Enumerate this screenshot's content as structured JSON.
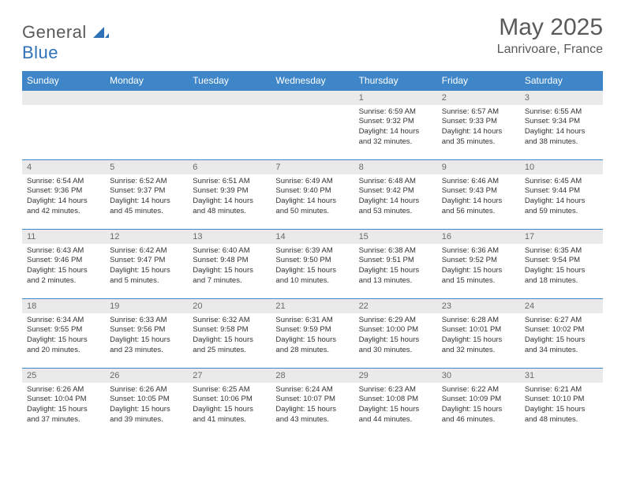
{
  "brand": {
    "part1": "General",
    "part2": "Blue"
  },
  "title": "May 2025",
  "location": "Lanrivoare, France",
  "header_bg": "#3f86c9",
  "daynum_bg": "#eaeaea",
  "text_color": "#333333",
  "muted_color": "#6a6a6a",
  "weekdays": [
    "Sunday",
    "Monday",
    "Tuesday",
    "Wednesday",
    "Thursday",
    "Friday",
    "Saturday"
  ],
  "weeks": [
    [
      null,
      null,
      null,
      null,
      {
        "n": "1",
        "sr": "Sunrise: 6:59 AM",
        "ss": "Sunset: 9:32 PM",
        "dl": "Daylight: 14 hours and 32 minutes."
      },
      {
        "n": "2",
        "sr": "Sunrise: 6:57 AM",
        "ss": "Sunset: 9:33 PM",
        "dl": "Daylight: 14 hours and 35 minutes."
      },
      {
        "n": "3",
        "sr": "Sunrise: 6:55 AM",
        "ss": "Sunset: 9:34 PM",
        "dl": "Daylight: 14 hours and 38 minutes."
      }
    ],
    [
      {
        "n": "4",
        "sr": "Sunrise: 6:54 AM",
        "ss": "Sunset: 9:36 PM",
        "dl": "Daylight: 14 hours and 42 minutes."
      },
      {
        "n": "5",
        "sr": "Sunrise: 6:52 AM",
        "ss": "Sunset: 9:37 PM",
        "dl": "Daylight: 14 hours and 45 minutes."
      },
      {
        "n": "6",
        "sr": "Sunrise: 6:51 AM",
        "ss": "Sunset: 9:39 PM",
        "dl": "Daylight: 14 hours and 48 minutes."
      },
      {
        "n": "7",
        "sr": "Sunrise: 6:49 AM",
        "ss": "Sunset: 9:40 PM",
        "dl": "Daylight: 14 hours and 50 minutes."
      },
      {
        "n": "8",
        "sr": "Sunrise: 6:48 AM",
        "ss": "Sunset: 9:42 PM",
        "dl": "Daylight: 14 hours and 53 minutes."
      },
      {
        "n": "9",
        "sr": "Sunrise: 6:46 AM",
        "ss": "Sunset: 9:43 PM",
        "dl": "Daylight: 14 hours and 56 minutes."
      },
      {
        "n": "10",
        "sr": "Sunrise: 6:45 AM",
        "ss": "Sunset: 9:44 PM",
        "dl": "Daylight: 14 hours and 59 minutes."
      }
    ],
    [
      {
        "n": "11",
        "sr": "Sunrise: 6:43 AM",
        "ss": "Sunset: 9:46 PM",
        "dl": "Daylight: 15 hours and 2 minutes."
      },
      {
        "n": "12",
        "sr": "Sunrise: 6:42 AM",
        "ss": "Sunset: 9:47 PM",
        "dl": "Daylight: 15 hours and 5 minutes."
      },
      {
        "n": "13",
        "sr": "Sunrise: 6:40 AM",
        "ss": "Sunset: 9:48 PM",
        "dl": "Daylight: 15 hours and 7 minutes."
      },
      {
        "n": "14",
        "sr": "Sunrise: 6:39 AM",
        "ss": "Sunset: 9:50 PM",
        "dl": "Daylight: 15 hours and 10 minutes."
      },
      {
        "n": "15",
        "sr": "Sunrise: 6:38 AM",
        "ss": "Sunset: 9:51 PM",
        "dl": "Daylight: 15 hours and 13 minutes."
      },
      {
        "n": "16",
        "sr": "Sunrise: 6:36 AM",
        "ss": "Sunset: 9:52 PM",
        "dl": "Daylight: 15 hours and 15 minutes."
      },
      {
        "n": "17",
        "sr": "Sunrise: 6:35 AM",
        "ss": "Sunset: 9:54 PM",
        "dl": "Daylight: 15 hours and 18 minutes."
      }
    ],
    [
      {
        "n": "18",
        "sr": "Sunrise: 6:34 AM",
        "ss": "Sunset: 9:55 PM",
        "dl": "Daylight: 15 hours and 20 minutes."
      },
      {
        "n": "19",
        "sr": "Sunrise: 6:33 AM",
        "ss": "Sunset: 9:56 PM",
        "dl": "Daylight: 15 hours and 23 minutes."
      },
      {
        "n": "20",
        "sr": "Sunrise: 6:32 AM",
        "ss": "Sunset: 9:58 PM",
        "dl": "Daylight: 15 hours and 25 minutes."
      },
      {
        "n": "21",
        "sr": "Sunrise: 6:31 AM",
        "ss": "Sunset: 9:59 PM",
        "dl": "Daylight: 15 hours and 28 minutes."
      },
      {
        "n": "22",
        "sr": "Sunrise: 6:29 AM",
        "ss": "Sunset: 10:00 PM",
        "dl": "Daylight: 15 hours and 30 minutes."
      },
      {
        "n": "23",
        "sr": "Sunrise: 6:28 AM",
        "ss": "Sunset: 10:01 PM",
        "dl": "Daylight: 15 hours and 32 minutes."
      },
      {
        "n": "24",
        "sr": "Sunrise: 6:27 AM",
        "ss": "Sunset: 10:02 PM",
        "dl": "Daylight: 15 hours and 34 minutes."
      }
    ],
    [
      {
        "n": "25",
        "sr": "Sunrise: 6:26 AM",
        "ss": "Sunset: 10:04 PM",
        "dl": "Daylight: 15 hours and 37 minutes."
      },
      {
        "n": "26",
        "sr": "Sunrise: 6:26 AM",
        "ss": "Sunset: 10:05 PM",
        "dl": "Daylight: 15 hours and 39 minutes."
      },
      {
        "n": "27",
        "sr": "Sunrise: 6:25 AM",
        "ss": "Sunset: 10:06 PM",
        "dl": "Daylight: 15 hours and 41 minutes."
      },
      {
        "n": "28",
        "sr": "Sunrise: 6:24 AM",
        "ss": "Sunset: 10:07 PM",
        "dl": "Daylight: 15 hours and 43 minutes."
      },
      {
        "n": "29",
        "sr": "Sunrise: 6:23 AM",
        "ss": "Sunset: 10:08 PM",
        "dl": "Daylight: 15 hours and 44 minutes."
      },
      {
        "n": "30",
        "sr": "Sunrise: 6:22 AM",
        "ss": "Sunset: 10:09 PM",
        "dl": "Daylight: 15 hours and 46 minutes."
      },
      {
        "n": "31",
        "sr": "Sunrise: 6:21 AM",
        "ss": "Sunset: 10:10 PM",
        "dl": "Daylight: 15 hours and 48 minutes."
      }
    ]
  ]
}
